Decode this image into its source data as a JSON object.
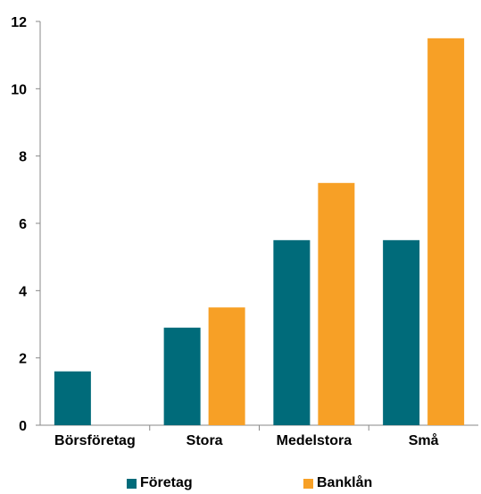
{
  "chart_data": {
    "type": "bar",
    "categories": [
      "Börsföretag",
      "Stora",
      "Medelstora",
      "Små"
    ],
    "series": [
      {
        "name": "Företag",
        "values": [
          1.6,
          2.9,
          5.5,
          5.5
        ],
        "color": "#006b7a"
      },
      {
        "name": "Banklån",
        "values": [
          null,
          3.5,
          7.2,
          11.5
        ],
        "color": "#f7a026"
      }
    ],
    "yticks": [
      "0",
      "2",
      "4",
      "6",
      "8",
      "10",
      "12"
    ],
    "ylim": [
      0,
      12
    ],
    "grid": false,
    "legend_position": "bottom"
  }
}
